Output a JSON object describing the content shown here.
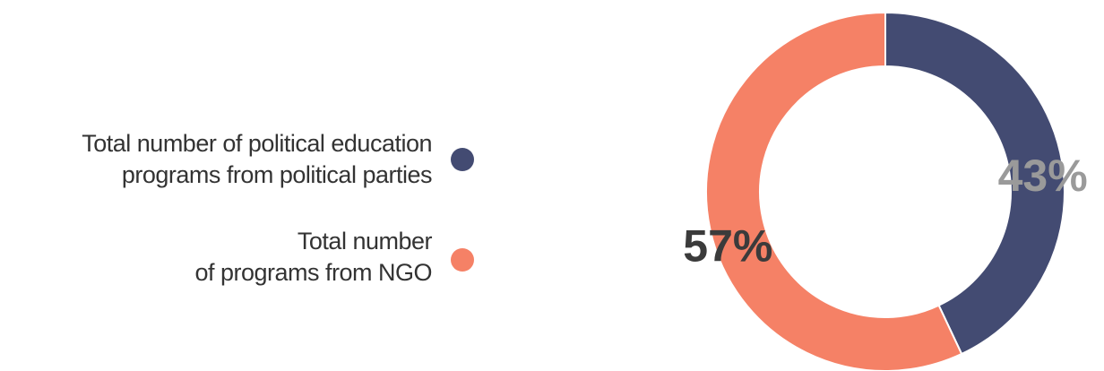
{
  "chart_data": {
    "type": "donut",
    "series": [
      {
        "name": "Total number of political education\nprograms from political parties",
        "color": "#434b72",
        "values": [
          43
        ],
        "value_labels": [
          "43%"
        ],
        "label_color": "#9a9a9a"
      },
      {
        "name": "Total number\nof programs from NGO",
        "color": "#f58166",
        "values": [
          57
        ],
        "value_labels": [
          "57%"
        ],
        "label_color": "#3b3b3b"
      }
    ]
  }
}
